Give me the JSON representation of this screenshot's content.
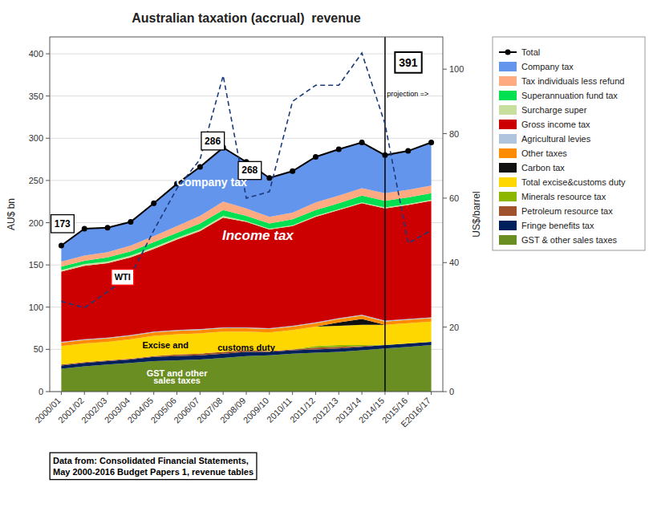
{
  "chart_data": {
    "type": "area",
    "title": "Australian taxation (accrual)  revenue",
    "y_label": "AU$ bn",
    "y2_label": "US$/barrel",
    "categories": [
      "2000/01",
      "2001/02",
      "2002/03",
      "2003/04",
      "2004/05",
      "2005/06",
      "2006/07",
      "2007/08",
      "2008/09",
      "2009/10",
      "2010/11",
      "2011/12",
      "2012/13",
      "2013/14",
      "2014/15",
      "2015/16",
      "E2016/17"
    ],
    "stacked": true,
    "grid": true,
    "legend": "right",
    "ylim": [
      0,
      420
    ],
    "yticks": [
      0,
      50,
      100,
      150,
      200,
      250,
      300,
      350,
      400
    ],
    "y2lim": [
      0,
      110
    ],
    "y2ticks": [
      0,
      20,
      40,
      60,
      80,
      100
    ],
    "series": [
      {
        "name": "GST & other sales taxes",
        "type": "area",
        "color": "#6b8e23",
        "values": [
          27,
          30,
          32,
          34,
          36,
          37,
          38,
          40,
          42,
          43,
          45,
          46,
          47,
          49,
          51,
          53,
          55
        ]
      },
      {
        "name": "Fringe benefits tax",
        "type": "area",
        "color": "#00205b",
        "values": [
          4,
          4,
          4,
          4,
          5,
          5,
          5,
          5,
          5,
          4,
          4,
          4,
          4,
          4,
          4,
          4,
          4
        ]
      },
      {
        "name": "Petroleum resource tax",
        "type": "area",
        "color": "#a0522d",
        "values": [
          1,
          1,
          1,
          1,
          1,
          2,
          2,
          2,
          2,
          1,
          1,
          2,
          2,
          1,
          0,
          0,
          0
        ]
      },
      {
        "name": "Minerals resource tax",
        "type": "area",
        "color": "#8db600",
        "values": [
          0,
          0,
          0,
          0,
          0,
          0,
          0,
          0,
          0,
          0,
          0,
          2,
          2,
          1,
          0,
          0,
          0
        ]
      },
      {
        "name": "Total excise&customs duty",
        "type": "area",
        "color": "#ffd700",
        "values": [
          22,
          22,
          22,
          23,
          24,
          24,
          24,
          24,
          22,
          22,
          23,
          23,
          23,
          24,
          24,
          24,
          24
        ]
      },
      {
        "name": "Carbon tax",
        "type": "area",
        "color": "#111111",
        "values": [
          0,
          0,
          0,
          0,
          0,
          0,
          0,
          0,
          0,
          0,
          0,
          0,
          4,
          7,
          0,
          0,
          0
        ]
      },
      {
        "name": "Other taxes",
        "type": "area",
        "color": "#ff8c00",
        "values": [
          4,
          4,
          4,
          4,
          4,
          4,
          4,
          4,
          4,
          4,
          4,
          4,
          4,
          4,
          4,
          4,
          4
        ]
      },
      {
        "name": "Agricultural levies",
        "type": "area",
        "color": "#b0c4de",
        "values": [
          1,
          1,
          1,
          1,
          1,
          1,
          1,
          1,
          1,
          1,
          1,
          1,
          1,
          1,
          1,
          1,
          1
        ]
      },
      {
        "name": "Gross income tax",
        "type": "area",
        "color": "#cc0000",
        "values": [
          83,
          87,
          88,
          92,
          98,
          107,
          116,
          130,
          125,
          117,
          118,
          125,
          128,
          132,
          133,
          135,
          138
        ]
      },
      {
        "name": "Surcharge super",
        "type": "area",
        "color": "#c8dfa0",
        "values": [
          2,
          2,
          2,
          2,
          2,
          2,
          2,
          2,
          1,
          1,
          1,
          1,
          1,
          1,
          1,
          1,
          1
        ]
      },
      {
        "name": "Superannuation fund tax",
        "type": "area",
        "color": "#00e050",
        "values": [
          4,
          4,
          5,
          5,
          6,
          6,
          7,
          7,
          6,
          6,
          7,
          7,
          7,
          8,
          8,
          8,
          8
        ]
      },
      {
        "name": "Tax individuals less refund",
        "type": "area",
        "color": "#ffaa80",
        "values": [
          6,
          6,
          6,
          7,
          7,
          8,
          9,
          10,
          9,
          8,
          8,
          9,
          9,
          9,
          9,
          9,
          9
        ]
      },
      {
        "name": "Company tax",
        "type": "area",
        "color": "#6495ed",
        "values": [
          19,
          32,
          29,
          28,
          39,
          50,
          58,
          64,
          55,
          46,
          49,
          54,
          55,
          54,
          45,
          46,
          51
        ]
      },
      {
        "name": "Total",
        "type": "line",
        "color": "black",
        "marker": "circle",
        "values": [
          173,
          193,
          194,
          201,
          223,
          246,
          266,
          289,
          272,
          253,
          261,
          278,
          287,
          295,
          280,
          285,
          295
        ]
      },
      {
        "type": "line",
        "axis": "y2",
        "color": "#1a3a7a",
        "line_style": "dashed",
        "values": [
          28,
          26,
          31,
          36,
          50,
          63,
          72,
          98,
          60,
          62,
          90,
          95,
          95,
          105,
          83,
          46,
          50
        ]
      }
    ],
    "annotations": [
      {
        "text": "173"
      },
      {
        "text": "286"
      },
      {
        "text": "268"
      },
      {
        "text": "391"
      },
      {
        "text": "Income tax"
      },
      {
        "text": "Company tax"
      },
      {
        "text": "Excise and"
      },
      {
        "text": "customs duty"
      },
      {
        "text": "GST and other"
      },
      {
        "text": "sales taxes"
      },
      {
        "text": "projection =>",
        "x": "2014/15"
      },
      {
        "text": "WTI"
      },
      {
        "text": "Data from: Consolidated Financial Statements,\nMay 2000-2016 Budget Papers 1, revenue tables"
      }
    ]
  }
}
